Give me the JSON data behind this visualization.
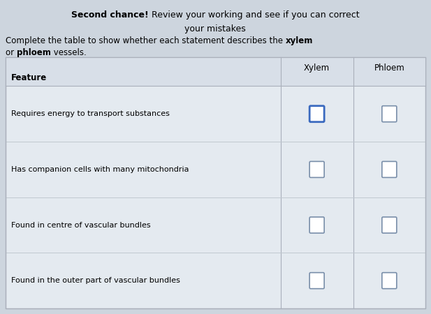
{
  "bg_color": "#cdd5de",
  "title_bold": "Second chance!",
  "title_rest_line1": " Review your working and see if you can correct",
  "title_line2": "your mistakes",
  "instruction_line1_normal": "Complete the table to show whether each statement describes the ",
  "instruction_line1_bold": "xylem",
  "instruction_line2_normal1": "or ",
  "instruction_line2_bold": "phloem",
  "instruction_line2_normal2": " vessels.",
  "col_headers": [
    "Xylem",
    "Phloem"
  ],
  "row_header": "Feature",
  "rows": [
    "Requires energy to transport substances",
    "Has companion cells with many mitochondria",
    "Found in centre of vascular bundles",
    "Found in the outer part of vascular bundles"
  ],
  "checkbox_xylem_colors": [
    "#3a6abf",
    "#7a8faa",
    "#7a8faa",
    "#7a8faa"
  ],
  "checkbox_phloem_colors": [
    "#7a8faa",
    "#7a8faa",
    "#7a8faa",
    "#7a8faa"
  ],
  "table_bg": "#e4eaf0",
  "table_border_color": "#aab0bb",
  "table_line_color": "#c0c8d0",
  "title_fontsize": 9,
  "instruction_fontsize": 8.5,
  "table_header_fontsize": 8.5,
  "table_row_fontsize": 8
}
